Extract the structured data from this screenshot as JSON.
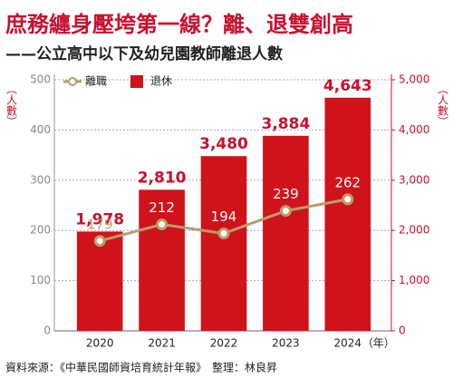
{
  "chart_data": {
    "type": "combo",
    "title": "庶務纏身壓垮第一線？離、退雙創高",
    "subtitle": "——公立高中以下及幼兒園教師離退人數",
    "source": "資料來源：《中華民國師資培育統計年報》　整理：林良昇",
    "ylabel": "（人數）",
    "y2label": "（人數）",
    "xlabel": "（年）",
    "categories": [
      "2020",
      "2021",
      "2022",
      "2023",
      "2024"
    ],
    "series": [
      {
        "name": "離職",
        "type": "line",
        "axis": "y",
        "color": "#b89d6a",
        "values": [
          179,
          212,
          194,
          239,
          262
        ]
      },
      {
        "name": "退休",
        "type": "bar",
        "axis": "y2",
        "color": "#d0121b",
        "values": [
          1978,
          2810,
          3480,
          3884,
          4643
        ],
        "value_labels": [
          "1,978",
          "2,810",
          "3,480",
          "3,884",
          "4,643"
        ]
      }
    ],
    "ylim": [
      0,
      500
    ],
    "yticks": [
      0,
      100,
      200,
      300,
      400,
      500
    ],
    "y2lim": [
      0,
      5000
    ],
    "y2ticks": [
      0,
      {
        "value": 1000,
        "label": "1,000"
      },
      {
        "value": 2000,
        "label": "2,000"
      },
      {
        "value": 3000,
        "label": "3,000"
      },
      {
        "value": 4000,
        "label": "4,000"
      },
      {
        "value": 5000,
        "label": "5,000"
      }
    ],
    "grid": true,
    "legend": "top-left"
  }
}
